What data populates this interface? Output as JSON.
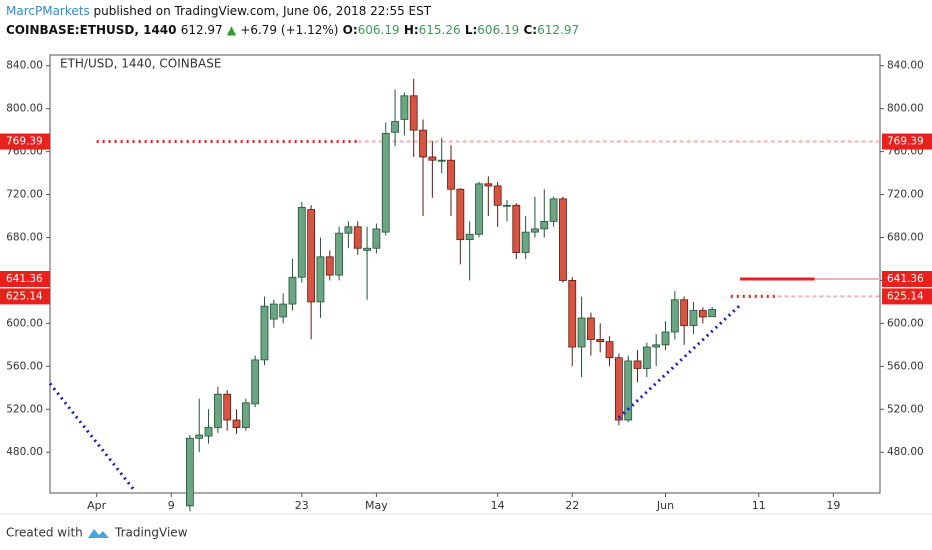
{
  "header": {
    "author": "MarcPMarkets",
    "published": "published on TradingView.com, June 06, 2018 22:55 EST",
    "symbol": "COINBASE:ETHUSD, 1440",
    "last": "612.97",
    "change": "+6.79 (+1.12%)",
    "o_label": "O:",
    "o": "606.19",
    "h_label": "H:",
    "h": "615.26",
    "l_label": "L:",
    "l": "606.19",
    "c_label": "C:",
    "c": "612.97"
  },
  "footer": {
    "created": "Created with",
    "brand": "TradingView"
  },
  "chart_data": {
    "type": "candlestick",
    "legend": "ETH/USD, 1440, COINBASE",
    "x": [
      "2018-04-11",
      "2018-04-12",
      "2018-04-13",
      "2018-04-14",
      "2018-04-15",
      "2018-04-16",
      "2018-04-17",
      "2018-04-18",
      "2018-04-19",
      "2018-04-20",
      "2018-04-21",
      "2018-04-22",
      "2018-04-23",
      "2018-04-24",
      "2018-04-25",
      "2018-04-26",
      "2018-04-27",
      "2018-04-28",
      "2018-04-29",
      "2018-04-30",
      "2018-05-01",
      "2018-05-02",
      "2018-05-03",
      "2018-05-04",
      "2018-05-05",
      "2018-05-06",
      "2018-05-07",
      "2018-05-08",
      "2018-05-09",
      "2018-05-10",
      "2018-05-11",
      "2018-05-12",
      "2018-05-13",
      "2018-05-14",
      "2018-05-15",
      "2018-05-16",
      "2018-05-17",
      "2018-05-18",
      "2018-05-19",
      "2018-05-20",
      "2018-05-21",
      "2018-05-22",
      "2018-05-23",
      "2018-05-24",
      "2018-05-25",
      "2018-05-26",
      "2018-05-27",
      "2018-05-28",
      "2018-05-29",
      "2018-05-30",
      "2018-05-31",
      "2018-06-01",
      "2018-06-02",
      "2018-06-03",
      "2018-06-04",
      "2018-06-05",
      "2018-06-06"
    ],
    "open": [
      430,
      493,
      495,
      503,
      534,
      510,
      503,
      525,
      566,
      604,
      606,
      618,
      643,
      706,
      620,
      662,
      645,
      684,
      690,
      668,
      670,
      685,
      778,
      790,
      812,
      780,
      755,
      752,
      752,
      725,
      678,
      683,
      730,
      728,
      710,
      710,
      666,
      685,
      688,
      695,
      716,
      640,
      578,
      605,
      585,
      583,
      568,
      510,
      565,
      558,
      578,
      580,
      592,
      622,
      598,
      612,
      606.19
    ],
    "high": [
      496,
      530,
      520,
      541,
      538,
      520,
      530,
      570,
      625,
      622,
      628,
      660,
      713,
      710,
      680,
      668,
      690,
      695,
      695,
      690,
      693,
      787,
      818,
      815,
      828,
      790,
      770,
      773,
      766,
      726,
      695,
      732,
      737,
      732,
      715,
      712,
      700,
      718,
      725,
      718,
      718,
      643,
      625,
      610,
      600,
      588,
      572,
      570,
      575,
      582,
      590,
      602,
      630,
      625,
      620,
      615,
      615.26
    ],
    "low": [
      425,
      480,
      488,
      498,
      500,
      497,
      500,
      522,
      561,
      596,
      600,
      612,
      638,
      585,
      605,
      640,
      640,
      670,
      664,
      622,
      665,
      682,
      765,
      775,
      755,
      700,
      717,
      740,
      700,
      655,
      640,
      680,
      700,
      690,
      695,
      660,
      660,
      680,
      680,
      690,
      638,
      560,
      550,
      570,
      573,
      560,
      505,
      508,
      545,
      550,
      560,
      575,
      585,
      580,
      590,
      600,
      606.19
    ],
    "close": [
      493,
      496,
      503,
      534,
      510,
      503,
      526,
      566,
      616,
      618,
      618,
      643,
      708,
      620,
      662,
      645,
      684,
      690,
      670,
      670,
      688,
      777,
      788,
      812,
      780,
      755,
      752,
      752,
      725,
      678,
      683,
      730,
      728,
      710,
      710,
      666,
      685,
      688,
      695,
      716,
      640,
      578,
      605,
      585,
      583,
      568,
      510,
      565,
      558,
      578,
      580,
      592,
      622,
      598,
      612,
      606,
      612.97
    ],
    "up_color": "#6ba583",
    "up_border": "#225437",
    "down_color": "#d75442",
    "down_border": "#5b1a13",
    "xlim": [
      "2018-03-27",
      "2018-06-24"
    ],
    "xticks": [
      {
        "value": "2018-04-01",
        "label": "Apr"
      },
      {
        "value": "2018-04-09",
        "label": "9"
      },
      {
        "value": "2018-04-23",
        "label": "23"
      },
      {
        "value": "2018-05-01",
        "label": "May"
      },
      {
        "value": "2018-05-14",
        "label": "14"
      },
      {
        "value": "2018-05-22",
        "label": "22"
      },
      {
        "value": "2018-06-01",
        "label": "Jun"
      },
      {
        "value": "2018-06-11",
        "label": "11"
      },
      {
        "value": "2018-06-19",
        "label": "19"
      }
    ],
    "ylim": [
      442,
      850
    ],
    "yticks": [
      {
        "value": 480,
        "label": "480.00"
      },
      {
        "value": 520,
        "label": "520.00"
      },
      {
        "value": 560,
        "label": "560.00"
      },
      {
        "value": 600,
        "label": "600.00"
      },
      {
        "value": 640,
        "label": "640.00"
      },
      {
        "value": 680,
        "label": "680.00"
      },
      {
        "value": 720,
        "label": "720.00"
      },
      {
        "value": 760,
        "label": "760.00"
      },
      {
        "value": 800,
        "label": "800.00"
      },
      {
        "value": 840,
        "label": "840.00"
      }
    ],
    "levels": [
      {
        "value": 769.39,
        "start": "2018-04-01",
        "end": "2018-04-29",
        "style": "dotted"
      },
      {
        "value": 641.36,
        "start": "2018-06-09",
        "end": "2018-06-17",
        "style": "solid"
      },
      {
        "value": 625.14,
        "start": "2018-06-08",
        "end": "2018-06-13",
        "style": "dotted"
      }
    ],
    "level_color": "#e8211d",
    "level_ext_color": "#f4b0b0",
    "trendlines": [
      {
        "x": [
          "2018-03-27",
          "2018-04-05"
        ],
        "y": [
          544,
          445
        ]
      },
      {
        "x": [
          "2018-05-27",
          "2018-06-09"
        ],
        "y": [
          512,
          617
        ]
      }
    ],
    "trend_color": "#1c1cbf"
  }
}
